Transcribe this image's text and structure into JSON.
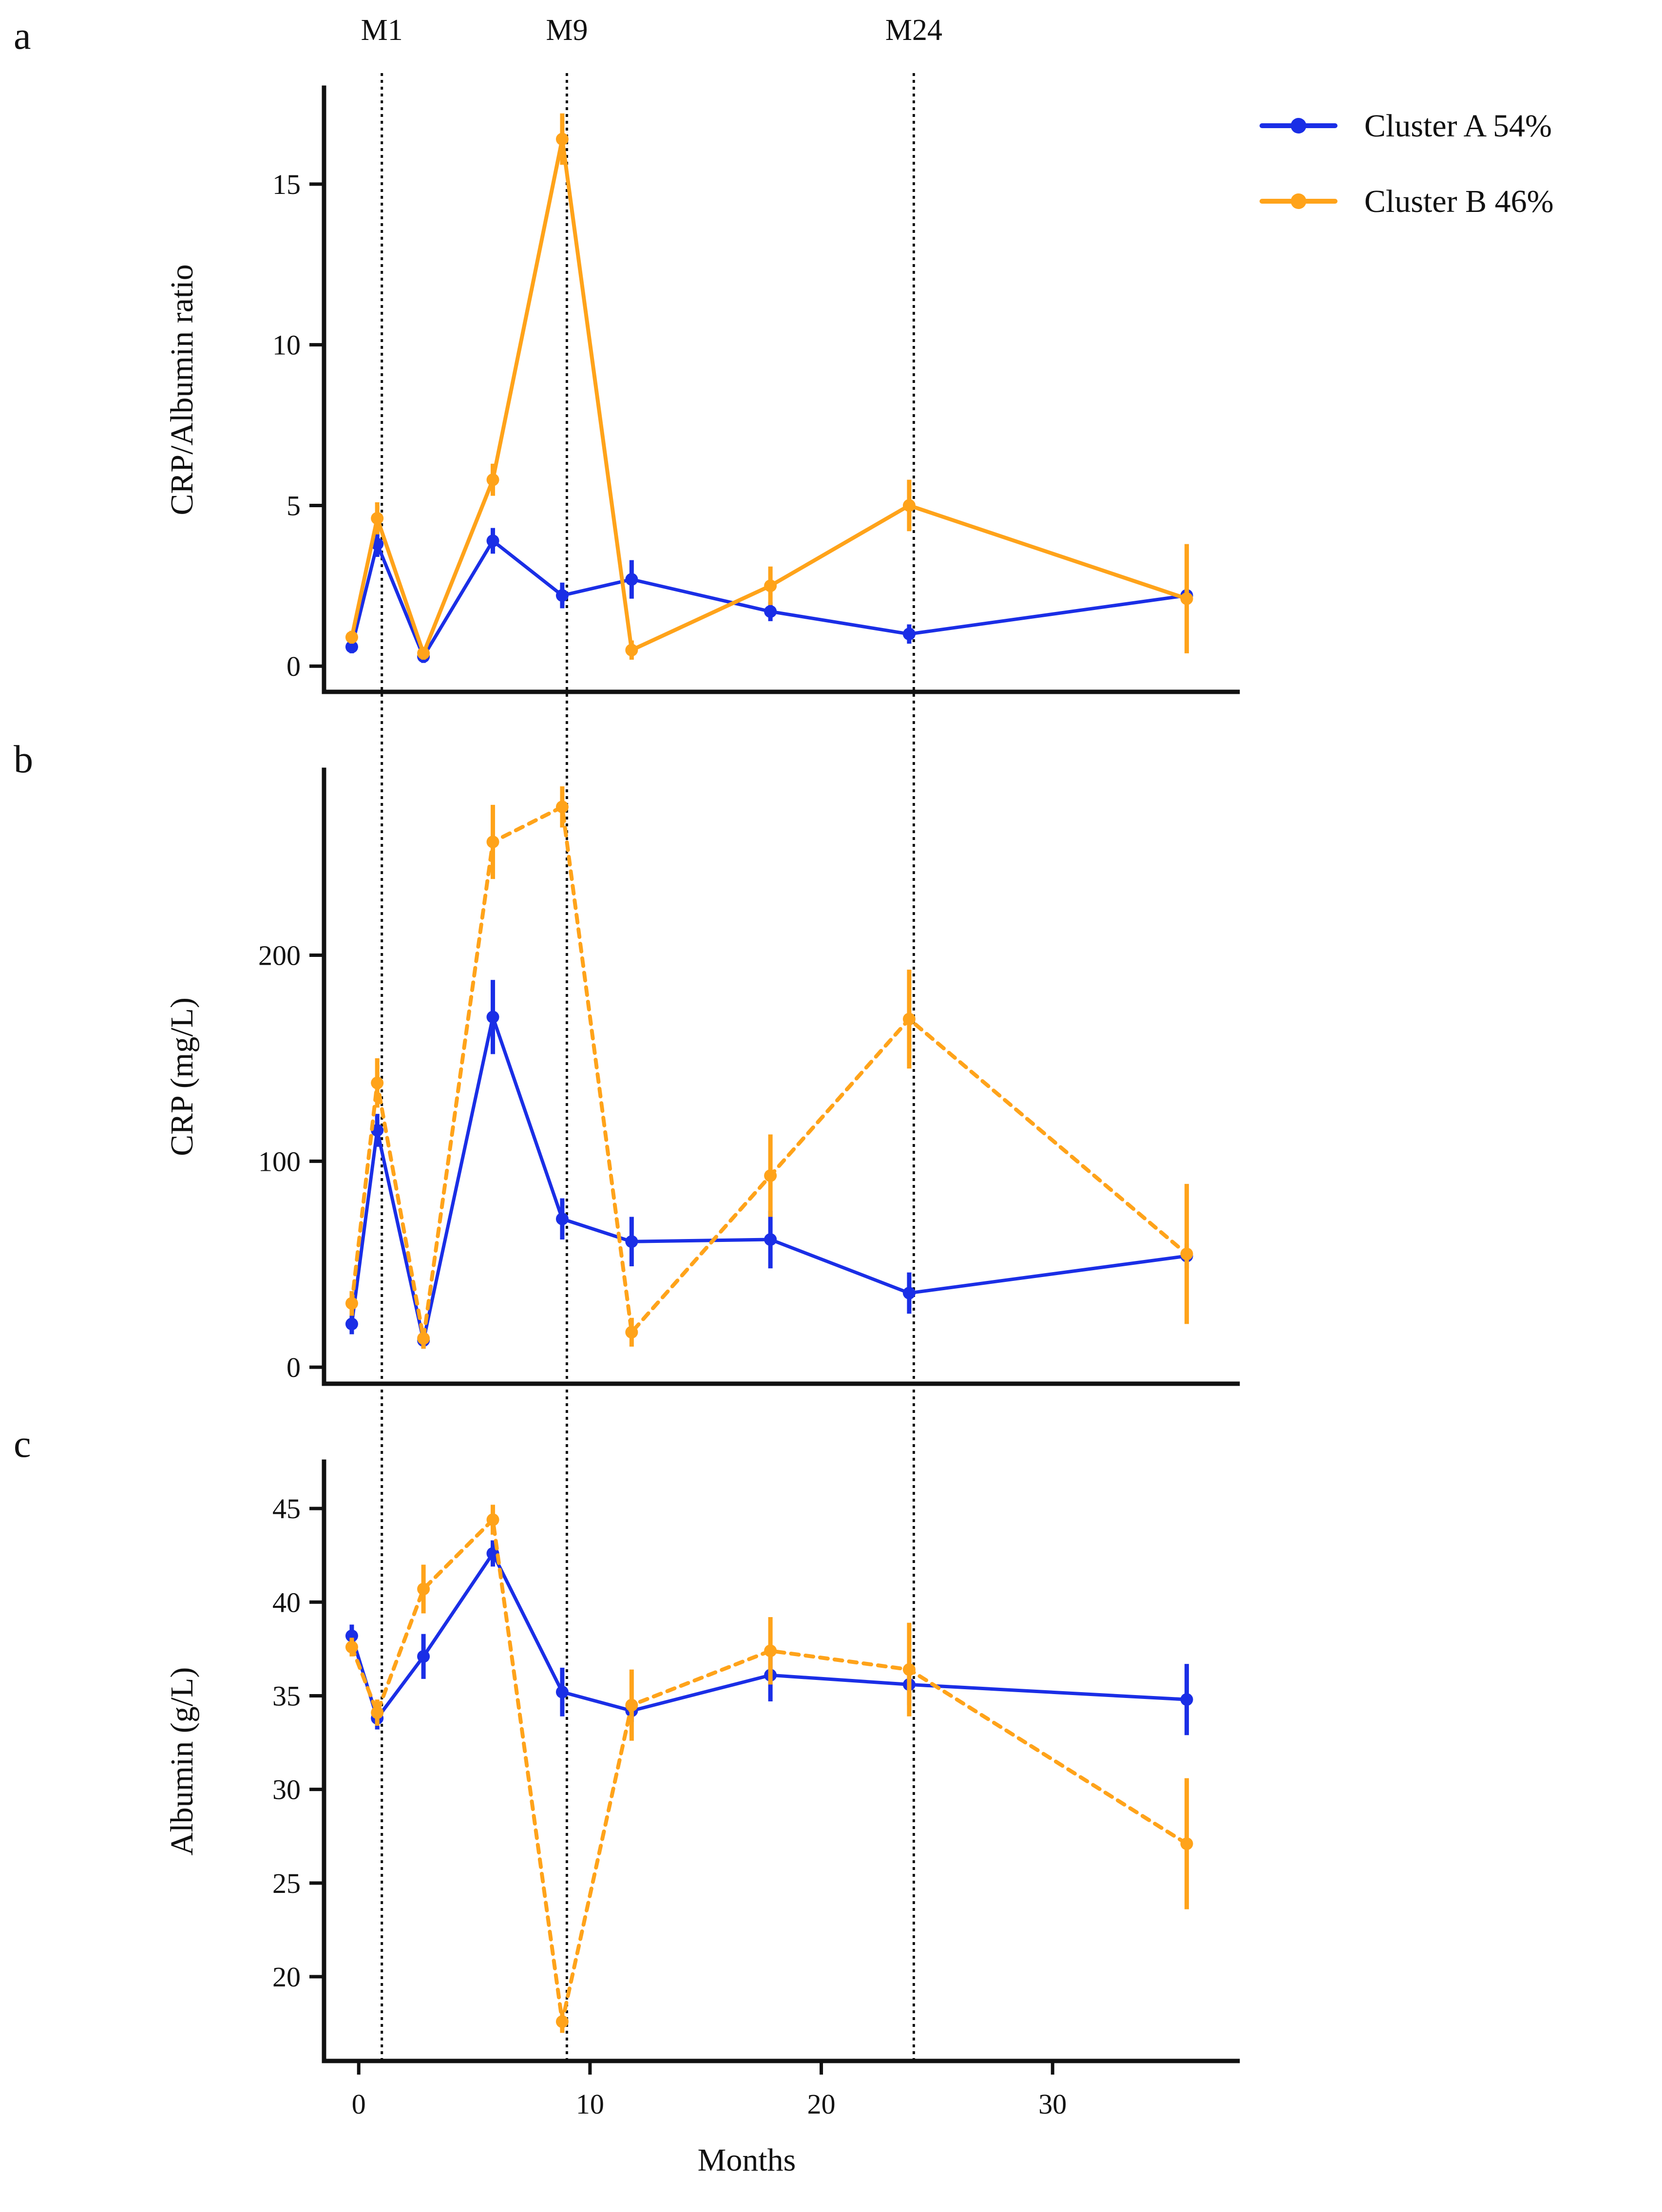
{
  "figure": {
    "x_axis_label": "Months",
    "x_ticks": [
      0,
      10,
      20,
      30
    ],
    "x_range": [
      -1.5,
      38
    ],
    "reference_lines": [
      {
        "label": "M1",
        "x": 1
      },
      {
        "label": "M9",
        "x": 9
      },
      {
        "label": "M24",
        "x": 24
      }
    ],
    "legend": [
      {
        "label": "Cluster A 54%",
        "color": "#1a2ee6"
      },
      {
        "label": "Cluster B 46%",
        "color": "#ffa31a"
      }
    ]
  },
  "chart_data": [
    {
      "type": "line",
      "panel": "a",
      "ylabel": "CRP/Albumin ratio",
      "ylim": [
        -0.8,
        18
      ],
      "yticks": [
        0,
        5,
        10,
        15
      ],
      "series": [
        {
          "name": "Cluster A 54%",
          "color": "#1a2ee6",
          "dashed": false,
          "stroke": 7,
          "x": [
            -0.3,
            0.8,
            2.8,
            5.8,
            8.8,
            11.8,
            17.8,
            23.8,
            35.8
          ],
          "y": [
            0.6,
            3.8,
            0.3,
            3.9,
            2.2,
            2.7,
            1.7,
            1.0,
            2.2
          ],
          "err": [
            0.2,
            0.4,
            0.2,
            0.4,
            0.4,
            0.6,
            0.3,
            0.3,
            0.2
          ]
        },
        {
          "name": "Cluster B 46%",
          "color": "#ffa31a",
          "dashed": false,
          "stroke": 8,
          "x": [
            -0.3,
            0.8,
            2.8,
            5.8,
            8.8,
            11.8,
            17.8,
            23.8,
            35.8
          ],
          "y": [
            0.9,
            4.6,
            0.4,
            5.8,
            16.4,
            0.5,
            2.5,
            5.0,
            2.1
          ],
          "err": [
            0.2,
            0.5,
            0.2,
            0.5,
            0.8,
            0.3,
            0.6,
            0.8,
            1.7
          ]
        }
      ]
    },
    {
      "type": "line",
      "panel": "b",
      "ylabel": "CRP (mg/L)",
      "ylim": [
        -8,
        290
      ],
      "yticks": [
        0,
        100,
        200
      ],
      "series": [
        {
          "name": "Cluster A 54%",
          "color": "#1a2ee6",
          "dashed": false,
          "stroke": 7,
          "x": [
            -0.3,
            0.8,
            2.8,
            5.8,
            8.8,
            11.8,
            17.8,
            23.8,
            35.8
          ],
          "y": [
            21,
            115,
            13,
            170,
            72,
            61,
            62,
            36,
            54
          ],
          "err": [
            5,
            8,
            4,
            18,
            10,
            12,
            14,
            10,
            6
          ]
        },
        {
          "name": "Cluster B 46%",
          "color": "#ffa31a",
          "dashed": true,
          "stroke": 8,
          "x": [
            -0.3,
            0.8,
            2.8,
            5.8,
            8.8,
            11.8,
            17.8,
            23.8,
            35.8
          ],
          "y": [
            31,
            138,
            14,
            255,
            272,
            17,
            93,
            169,
            55
          ],
          "err": [
            6,
            12,
            5,
            18,
            10,
            7,
            20,
            24,
            34
          ]
        }
      ]
    },
    {
      "type": "line",
      "panel": "c",
      "ylabel": "Albumin (g/L)",
      "ylim": [
        15.5,
        47.5
      ],
      "yticks": [
        20,
        25,
        30,
        35,
        40,
        45
      ],
      "series": [
        {
          "name": "Cluster A 54%",
          "color": "#1a2ee6",
          "dashed": false,
          "stroke": 7,
          "x": [
            -0.3,
            0.8,
            2.8,
            5.8,
            8.8,
            11.8,
            17.8,
            23.8,
            35.8
          ],
          "y": [
            38.2,
            33.8,
            37.1,
            42.6,
            35.2,
            34.2,
            36.1,
            35.6,
            34.8
          ],
          "err": [
            0.6,
            0.6,
            1.2,
            0.7,
            1.3,
            0.6,
            1.4,
            1.1,
            1.9
          ]
        },
        {
          "name": "Cluster B 46%",
          "color": "#ffa31a",
          "dashed": true,
          "stroke": 8,
          "x": [
            -0.3,
            0.8,
            2.8,
            5.8,
            8.8,
            11.8,
            17.8,
            23.8,
            35.8
          ],
          "y": [
            37.6,
            34.1,
            40.7,
            44.4,
            17.6,
            34.5,
            37.4,
            36.4,
            27.1
          ],
          "err": [
            0.5,
            0.7,
            1.3,
            0.8,
            0.6,
            1.9,
            1.8,
            2.5,
            3.5
          ]
        }
      ]
    }
  ]
}
